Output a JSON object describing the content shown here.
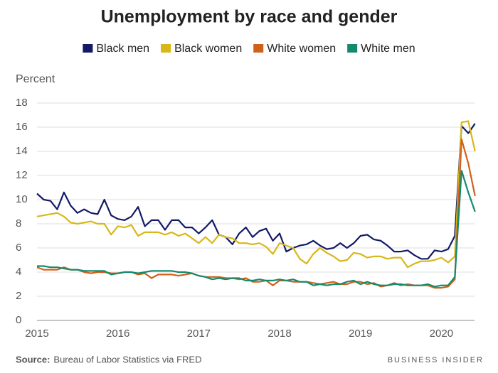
{
  "chart_data": {
    "type": "line",
    "title": "Unemployment by race and gender",
    "y_label": "Percent",
    "source_label": "Source:",
    "source": "Bureau of Labor Statistics via FRED",
    "branding": "BUSINESS INSIDER",
    "categories": [
      "2015",
      null,
      null,
      null,
      null,
      null,
      null,
      null,
      null,
      null,
      null,
      null,
      "2016",
      null,
      null,
      null,
      null,
      null,
      null,
      null,
      null,
      null,
      null,
      null,
      "2017",
      null,
      null,
      null,
      null,
      null,
      null,
      null,
      null,
      null,
      null,
      null,
      "2018",
      null,
      null,
      null,
      null,
      null,
      null,
      null,
      null,
      null,
      null,
      null,
      "2019",
      null,
      null,
      null,
      null,
      null,
      null,
      null,
      null,
      null,
      null,
      null,
      "2020",
      null,
      null,
      null,
      null,
      null
    ],
    "series": [
      {
        "name": "Black men",
        "color": "#121a66",
        "values": [
          10.5,
          10.0,
          9.9,
          9.2,
          10.6,
          9.5,
          8.9,
          9.2,
          8.9,
          8.8,
          10.0,
          8.7,
          8.4,
          8.3,
          8.6,
          9.4,
          7.8,
          8.3,
          8.3,
          7.5,
          8.3,
          8.3,
          7.7,
          7.7,
          7.2,
          7.7,
          8.3,
          7.1,
          6.9,
          6.3,
          7.2,
          7.7,
          6.9,
          7.4,
          7.6,
          6.6,
          7.2,
          5.7,
          6.0,
          6.2,
          6.3,
          6.6,
          6.2,
          5.9,
          6.0,
          6.4,
          6.0,
          6.4,
          7.0,
          7.1,
          6.7,
          6.6,
          6.2,
          5.7,
          5.7,
          5.8,
          5.4,
          5.1,
          5.1,
          5.8,
          5.7,
          5.9,
          7.0,
          16.1,
          15.5,
          16.3
        ]
      },
      {
        "name": "Black women",
        "color": "#d8b718",
        "values": [
          8.6,
          8.7,
          8.8,
          8.9,
          8.6,
          8.1,
          8.0,
          8.1,
          8.2,
          8.0,
          8.0,
          7.1,
          7.8,
          7.7,
          7.9,
          7.0,
          7.3,
          7.3,
          7.3,
          7.1,
          7.3,
          7.0,
          7.2,
          6.8,
          6.4,
          6.9,
          6.4,
          7.1,
          6.9,
          6.8,
          6.4,
          6.4,
          6.3,
          6.4,
          6.1,
          5.5,
          6.4,
          6.2,
          6.0,
          5.1,
          4.7,
          5.5,
          6.0,
          5.6,
          5.3,
          4.9,
          5.0,
          5.6,
          5.5,
          5.2,
          5.3,
          5.3,
          5.1,
          5.2,
          5.2,
          4.4,
          4.7,
          4.9,
          4.9,
          5.0,
          5.2,
          4.8,
          5.3,
          16.4,
          16.5,
          14.0
        ]
      },
      {
        "name": "White women",
        "color": "#d1601b",
        "values": [
          4.4,
          4.2,
          4.2,
          4.2,
          4.4,
          4.2,
          4.2,
          4.0,
          3.9,
          4.0,
          4.0,
          3.9,
          3.9,
          4.0,
          4.0,
          3.8,
          3.9,
          3.5,
          3.8,
          3.8,
          3.8,
          3.7,
          3.8,
          3.9,
          3.7,
          3.6,
          3.6,
          3.6,
          3.5,
          3.5,
          3.4,
          3.5,
          3.2,
          3.2,
          3.3,
          2.9,
          3.3,
          3.3,
          3.2,
          3.2,
          3.2,
          3.1,
          3.0,
          3.1,
          3.2,
          3.0,
          3.0,
          3.2,
          3.2,
          3.0,
          3.1,
          2.8,
          2.9,
          3.1,
          2.9,
          3.0,
          2.9,
          2.9,
          2.9,
          2.7,
          2.7,
          2.8,
          3.4,
          15.0,
          13.0,
          10.3
        ]
      },
      {
        "name": "White men",
        "color": "#148a6c",
        "values": [
          4.5,
          4.5,
          4.4,
          4.4,
          4.3,
          4.2,
          4.2,
          4.1,
          4.1,
          4.1,
          4.1,
          3.8,
          3.9,
          4.0,
          4.0,
          3.9,
          4.0,
          4.1,
          4.1,
          4.1,
          4.1,
          4.0,
          4.0,
          3.9,
          3.7,
          3.6,
          3.4,
          3.5,
          3.4,
          3.5,
          3.5,
          3.3,
          3.3,
          3.4,
          3.3,
          3.3,
          3.4,
          3.3,
          3.4,
          3.2,
          3.2,
          2.9,
          3.0,
          2.9,
          3.0,
          3.0,
          3.2,
          3.3,
          3.0,
          3.2,
          3.0,
          2.9,
          2.9,
          3.0,
          3.0,
          2.9,
          2.9,
          2.9,
          3.0,
          2.8,
          2.9,
          2.9,
          3.6,
          12.4,
          10.6,
          9.0
        ]
      }
    ],
    "ylim": [
      0,
      18
    ],
    "yticks": [
      0,
      2,
      4,
      6,
      8,
      10,
      12,
      14,
      16,
      18
    ],
    "grid": true
  }
}
